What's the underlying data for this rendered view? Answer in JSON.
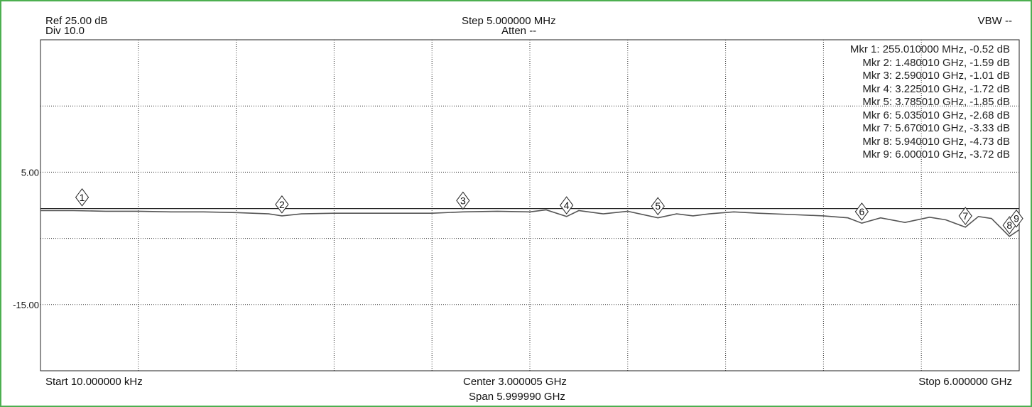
{
  "header": {
    "ref": "Ref 25.00 dB",
    "div": "Div 10.0",
    "step": "Step 5.000000 MHz",
    "atten": "Atten --",
    "vbw": "VBW --"
  },
  "footer": {
    "start": "Start 10.000000 kHz",
    "center": "Center 3.000005 GHz",
    "span": "Span 5.999990 GHz",
    "stop": "Stop 6.000000 GHz"
  },
  "colors": {
    "frame": "#4caf50",
    "trace": "#555555",
    "grid": "#333333"
  },
  "chart_data": {
    "type": "line",
    "xlim": [
      1e-05,
      6.0
    ],
    "ylim": [
      -25,
      25
    ],
    "y_tick_labels": [
      {
        "value": 5,
        "label": "5.00"
      },
      {
        "value": -15,
        "label": "-15.00"
      }
    ],
    "grid": true,
    "reference_line": -0.5,
    "series": [
      {
        "x": [
          1e-05,
          0.2,
          0.4,
          0.6,
          0.8,
          1.0,
          1.2,
          1.4,
          1.48,
          1.6,
          1.8,
          2.0,
          2.2,
          2.4,
          2.59,
          2.8,
          3.0,
          3.1,
          3.225,
          3.3,
          3.45,
          3.6,
          3.785,
          3.9,
          4.0,
          4.1,
          4.25,
          4.4,
          4.6,
          4.8,
          4.95,
          5.035,
          5.15,
          5.3,
          5.45,
          5.55,
          5.67,
          5.75,
          5.83,
          5.94,
          6.0
        ],
        "y": [
          -0.8,
          -0.8,
          -0.9,
          -0.9,
          -1.0,
          -1.0,
          -1.1,
          -1.3,
          -1.6,
          -1.3,
          -1.2,
          -1.2,
          -1.2,
          -1.2,
          -1.0,
          -0.9,
          -1.0,
          -0.7,
          -1.7,
          -0.8,
          -1.3,
          -0.9,
          -1.9,
          -1.3,
          -1.6,
          -1.3,
          -1.0,
          -1.2,
          -1.4,
          -1.6,
          -1.9,
          -2.7,
          -1.9,
          -2.6,
          -1.8,
          -2.2,
          -3.3,
          -1.7,
          -2.0,
          -4.7,
          -3.7
        ]
      }
    ],
    "markers": [
      {
        "id": "1",
        "x": 0.25501,
        "y": -0.52,
        "text": "Mkr 1: 255.010000 MHz, -0.52 dB"
      },
      {
        "id": "2",
        "x": 1.48001,
        "y": -1.59,
        "text": "Mkr 2: 1.480010 GHz, -1.59 dB"
      },
      {
        "id": "3",
        "x": 2.59001,
        "y": -1.01,
        "text": "Mkr 3: 2.590010 GHz, -1.01 dB"
      },
      {
        "id": "4",
        "x": 3.22501,
        "y": -1.72,
        "text": "Mkr 4: 3.225010 GHz, -1.72 dB"
      },
      {
        "id": "5",
        "x": 3.78501,
        "y": -1.85,
        "text": "Mkr 5: 3.785010 GHz, -1.85 dB"
      },
      {
        "id": "6",
        "x": 5.03501,
        "y": -2.68,
        "text": "Mkr 6: 5.035010 GHz, -2.68 dB"
      },
      {
        "id": "7",
        "x": 5.67001,
        "y": -3.33,
        "text": "Mkr 7: 5.670010 GHz, -3.33 dB"
      },
      {
        "id": "8",
        "x": 5.94001,
        "y": -4.73,
        "text": "Mkr 8: 5.940010 GHz, -4.73 dB"
      },
      {
        "id": "9",
        "x": 6.00001,
        "y": -3.72,
        "text": "Mkr 9: 6.000010 GHz, -3.72 dB"
      }
    ]
  }
}
